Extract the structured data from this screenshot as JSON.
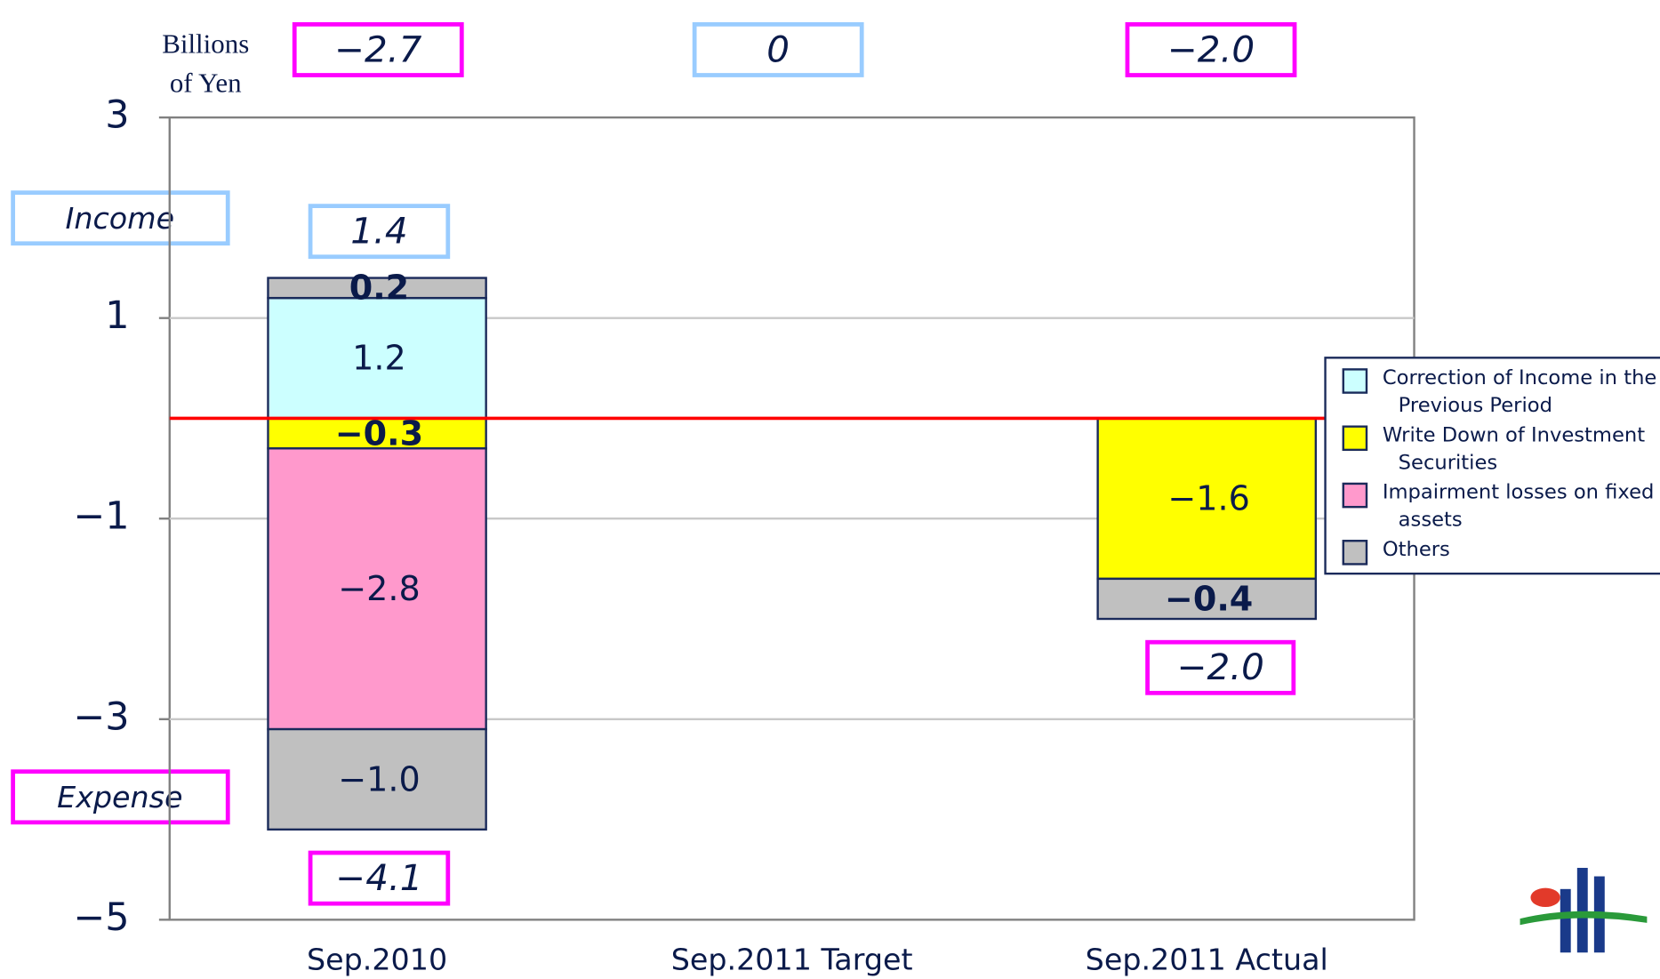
{
  "chart_data": {
    "type": "stacked_bar",
    "unit_label": [
      "Billions",
      "of Yen"
    ],
    "income_label": "Income",
    "expense_label": "Expense",
    "categories": [
      "Sep.2010",
      "Sep.2011 Target",
      "Sep.2011 Actual"
    ],
    "ylim": [
      -5,
      3
    ],
    "yticks": [
      3,
      1,
      {
        "value": -1,
        "label": "−1"
      },
      {
        "value": -3,
        "label": "−3"
      },
      {
        "value": -5,
        "label": "−5"
      }
    ],
    "grid": true,
    "zero_line_color": "#ff0000",
    "legend": "right",
    "series": [
      {
        "name": "Correction of Income in the Previous Period",
        "color": "#ccffff",
        "values": [
          1.2,
          null,
          null
        ],
        "value_labels": [
          "1.2",
          null,
          null
        ]
      },
      {
        "name": "Write Down of Investment Securities",
        "color": "#ffff00",
        "values": [
          -0.3,
          null,
          -1.6
        ],
        "value_labels": [
          "−0.3",
          null,
          "−1.6"
        ]
      },
      {
        "name": "Impairment losses on fixed assets",
        "color": "#ff99cc",
        "values": [
          -2.8,
          null,
          null
        ],
        "value_labels": [
          "−2.8",
          null,
          null
        ]
      },
      {
        "name": "Others",
        "color": "#c0c0c0",
        "values": [
          -1.0,
          null,
          -0.4
        ],
        "value_labels": [
          "−1.0",
          null,
          "−0.4"
        ],
        "positive_values": [
          0.2,
          null,
          null
        ],
        "positive_value_labels": [
          "0.2",
          null,
          null
        ]
      }
    ],
    "totals": {
      "values": [
        -2.7,
        0,
        -2.0
      ],
      "value_labels": [
        "−2.7",
        "0",
        "−2.0"
      ]
    },
    "income_totals": {
      "values": [
        1.4,
        null,
        null
      ],
      "value_labels": [
        "1.4",
        null,
        null
      ]
    },
    "expense_totals": {
      "values": [
        -4.1,
        null,
        -2.0
      ],
      "value_labels": [
        "−4.1",
        null,
        "−2.0"
      ]
    }
  }
}
